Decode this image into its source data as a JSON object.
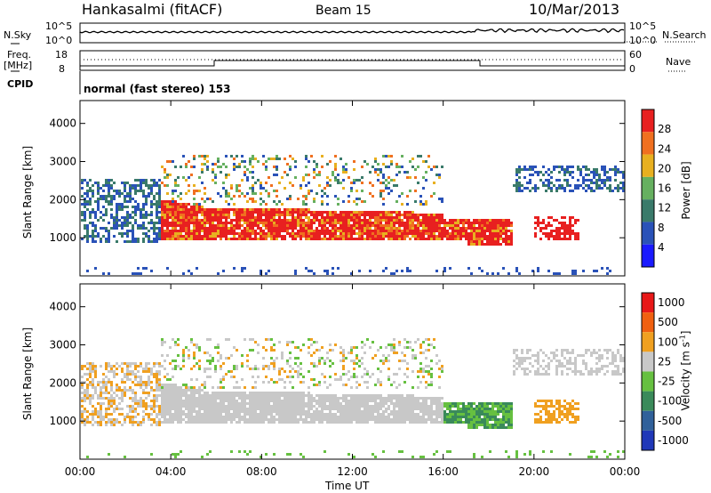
{
  "header": {
    "station": "Hankasalmi (fitACF)",
    "beam": "Beam 15",
    "date": "10/Mar/2013"
  },
  "strip_noise": {
    "left_label": "N.Sky",
    "right_label": "N.Search",
    "left_top": "10^5",
    "left_bottom": "10^0",
    "right_top": "10^5",
    "right_bottom": "10^0"
  },
  "strip_freq": {
    "left_label_line1": "Freq.",
    "left_label_line2": "[MHz]",
    "right_label": "Nave",
    "left_top": "18",
    "left_bottom": "8",
    "right_top": "60",
    "right_bottom": "0"
  },
  "strip_cpid": {
    "label": "CPID",
    "text": "normal (fast stereo) 153"
  },
  "chart_data": [
    {
      "type": "heatmap",
      "name": "power",
      "ylabel": "Slant Range [km]",
      "xlabel": "Time UT",
      "ylim": [
        0,
        4600
      ],
      "yticks": [
        "1000",
        "2000",
        "3000",
        "4000"
      ],
      "xticks": [
        "00:00",
        "04:00",
        "08:00",
        "12:00",
        "16:00",
        "20:00",
        "00:00"
      ],
      "colorbar": {
        "label": "Power [dB]",
        "ticks": [
          "4",
          "8",
          "12",
          "16",
          "20",
          "24",
          "28"
        ],
        "colors": [
          "#1a1aff",
          "#2a52b8",
          "#3a7a6a",
          "#66b060",
          "#e8b020",
          "#f07020",
          "#e82020"
        ]
      }
    },
    {
      "type": "heatmap",
      "name": "velocity",
      "ylabel": "Slant Range [km]",
      "xlabel": "Time UT",
      "ylim": [
        0,
        4600
      ],
      "yticks": [
        "1000",
        "2000",
        "3000",
        "4000"
      ],
      "xticks": [
        "00:00",
        "04:00",
        "08:00",
        "12:00",
        "16:00",
        "20:00",
        "00:00"
      ],
      "colorbar": {
        "label": "Velocity [m s",
        "label_sup": "-1",
        "label_end": "]",
        "ticks": [
          "1000",
          "500",
          "100",
          "25",
          "-25",
          "-100",
          "-500",
          "-1000"
        ],
        "colors": [
          "#2038b8",
          "#30609a",
          "#3a8a5a",
          "#66c040",
          "#c8c8c8",
          "#f0a020",
          "#f06010",
          "#e81818"
        ]
      }
    }
  ],
  "x_axis": {
    "label": "Time UT"
  }
}
